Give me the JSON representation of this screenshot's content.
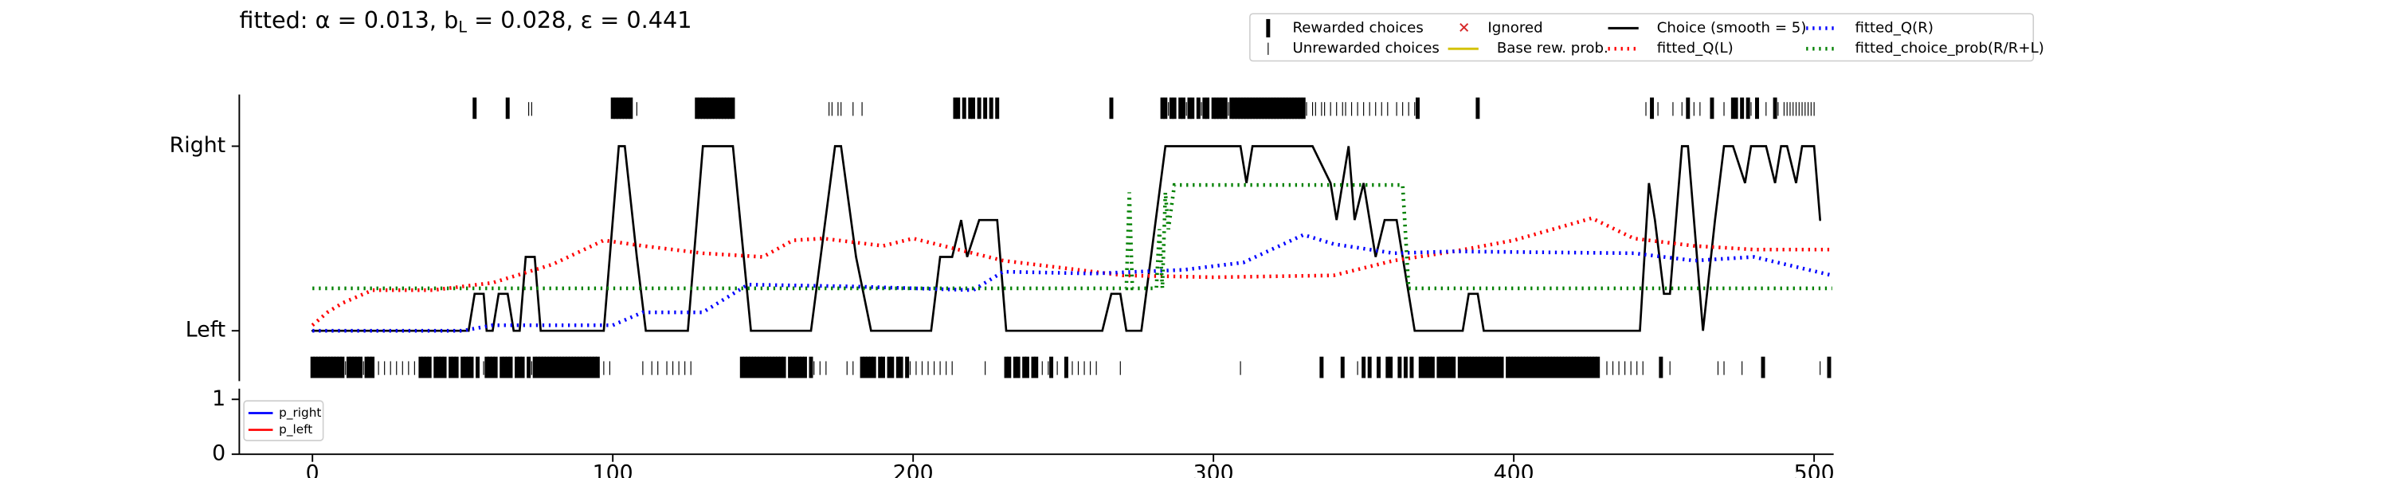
{
  "chart_data": [
    {
      "type": "line",
      "title": [
        "fitted: α = 0.013, b",
        "L",
        " = 0.028, ε = 0.441"
      ],
      "xlim": [
        -24,
        506
      ],
      "ylim": [
        -0.27,
        1.28
      ],
      "yticks": [
        {
          "value": 0,
          "label": "Left"
        },
        {
          "value": 1,
          "label": "Right"
        }
      ],
      "events": [
        {
          "name": "Rewarded choices",
          "color": "#000000",
          "right": [
            54,
            65,
            100,
            101,
            102,
            103,
            104,
            105,
            106,
            128,
            129,
            130,
            131,
            132,
            133,
            134,
            135,
            136,
            137,
            138,
            139,
            140,
            214,
            215,
            217,
            219,
            220,
            222,
            224,
            226,
            228,
            266,
            283,
            284,
            286,
            287,
            289,
            290,
            292,
            293,
            295,
            297,
            298,
            300,
            301,
            302,
            303,
            304,
            306,
            307,
            308,
            309,
            310,
            311,
            312,
            313,
            314,
            315,
            316,
            317,
            318,
            319,
            320,
            321,
            322,
            323,
            324,
            325,
            326,
            327,
            328,
            329,
            330,
            368,
            388,
            446,
            458,
            466,
            473,
            474,
            476,
            478,
            481,
            487
          ],
          "left": [
            0,
            1,
            2,
            3,
            4,
            5,
            6,
            7,
            8,
            9,
            10,
            12,
            13,
            14,
            15,
            16,
            18,
            19,
            20,
            36,
            37,
            38,
            39,
            41,
            42,
            43,
            44,
            46,
            47,
            48,
            50,
            51,
            52,
            53,
            55,
            58,
            59,
            60,
            61,
            63,
            64,
            65,
            66,
            68,
            69,
            70,
            72,
            74,
            75,
            76,
            77,
            78,
            79,
            80,
            81,
            82,
            83,
            84,
            85,
            86,
            87,
            88,
            89,
            90,
            91,
            92,
            93,
            94,
            95,
            143,
            144,
            145,
            146,
            147,
            148,
            149,
            150,
            151,
            152,
            153,
            154,
            155,
            156,
            157,
            159,
            160,
            161,
            162,
            163,
            164,
            166,
            183,
            184,
            185,
            186,
            187,
            189,
            190,
            192,
            193,
            195,
            196,
            198,
            231,
            232,
            234,
            235,
            237,
            238,
            240,
            241,
            246,
            251,
            336,
            343,
            350,
            352,
            355,
            358,
            359,
            362,
            364,
            366,
            369,
            370,
            371,
            372,
            373,
            375,
            376,
            377,
            378,
            379,
            380,
            382,
            383,
            384,
            385,
            386,
            387,
            388,
            389,
            390,
            391,
            392,
            393,
            394,
            395,
            396,
            398,
            399,
            400,
            401,
            402,
            403,
            404,
            405,
            406,
            407,
            408,
            409,
            410,
            411,
            412,
            413,
            414,
            415,
            416,
            417,
            418,
            419,
            420,
            421,
            422,
            423,
            424,
            425,
            426,
            427,
            428,
            449,
            483,
            505
          ]
        },
        {
          "name": "Unrewarded choices",
          "color": "#000000",
          "right": [
            72,
            73,
            108,
            172,
            173,
            175,
            176,
            180,
            183,
            285,
            291,
            296,
            305,
            331,
            333,
            334,
            336,
            337,
            339,
            341,
            343,
            344,
            346,
            348,
            350,
            352,
            354,
            356,
            358,
            361,
            363,
            365,
            367,
            444,
            448,
            453,
            456,
            460,
            462,
            470,
            479,
            484,
            488,
            490,
            491,
            492,
            493,
            494,
            495,
            496,
            497,
            498,
            499,
            500
          ],
          "left": [
            11,
            17,
            22,
            24,
            26,
            28,
            30,
            32,
            34,
            57,
            73,
            97,
            99,
            110,
            113,
            115,
            118,
            120,
            122,
            124,
            126,
            167,
            169,
            171,
            178,
            180,
            199,
            201,
            203,
            205,
            207,
            209,
            211,
            213,
            224,
            243,
            245,
            248,
            253,
            255,
            257,
            259,
            261,
            269,
            309,
            348,
            431,
            433,
            435,
            437,
            439,
            441,
            443,
            452,
            468,
            470,
            476,
            502
          ]
        }
      ],
      "other_legend": [
        {
          "name": "Ignored",
          "color": "#d62728",
          "marker": "x"
        },
        {
          "name": "Base rew. prob.",
          "color": "#d4c20a",
          "marker": "line"
        }
      ],
      "series": [
        {
          "name": "Choice (smooth = 5)",
          "color": "#000000",
          "style": "solid",
          "x": [
            0,
            52,
            54,
            57,
            58,
            60,
            62,
            65,
            67,
            69,
            71,
            74,
            76,
            97,
            102,
            104,
            108,
            111,
            125,
            130,
            140,
            146,
            166,
            174,
            176,
            181,
            186,
            206,
            209,
            213,
            216,
            218,
            222,
            228,
            231,
            263,
            266,
            269,
            271,
            276,
            284,
            309,
            311,
            313,
            333,
            339,
            341,
            343,
            345,
            347,
            350,
            354,
            357,
            361,
            363,
            367,
            383,
            385,
            388,
            390,
            442,
            445,
            447,
            450,
            452,
            456,
            458,
            461,
            463,
            467,
            470,
            473,
            477,
            479,
            484,
            487,
            489,
            491,
            494,
            496,
            500,
            502
          ],
          "values": [
            0,
            0,
            0.2,
            0.2,
            0,
            0,
            0.2,
            0.2,
            0,
            0,
            0.4,
            0.4,
            0,
            0,
            1,
            1,
            0.4,
            0,
            0,
            1,
            1,
            0,
            0,
            1,
            1,
            0.4,
            0,
            0,
            0.4,
            0.4,
            0.6,
            0.4,
            0.6,
            0.6,
            0,
            0,
            0.2,
            0.2,
            0,
            0,
            1,
            1,
            0.8,
            1,
            1,
            0.8,
            0.6,
            0.8,
            1,
            0.6,
            0.8,
            0.4,
            0.6,
            0.6,
            0.4,
            0,
            0,
            0.2,
            0.2,
            0,
            0,
            0.8,
            0.6,
            0.2,
            0.2,
            1,
            1,
            0.4,
            0,
            0.6,
            1,
            1,
            0.8,
            1,
            1,
            0.8,
            1,
            1,
            0.8,
            1,
            1,
            0.6
          ]
        },
        {
          "name": "fitted_Q(L)",
          "color": "#ff0000",
          "style": "dotted",
          "x": [
            0,
            5,
            10,
            20,
            40,
            60,
            80,
            97,
            110,
            130,
            150,
            160,
            170,
            190,
            200,
            230,
            270,
            300,
            340,
            360,
            380,
            400,
            426,
            440,
            460,
            480,
            506
          ],
          "values": [
            0.03,
            0.1,
            0.15,
            0.22,
            0.22,
            0.26,
            0.36,
            0.49,
            0.46,
            0.42,
            0.4,
            0.49,
            0.5,
            0.46,
            0.5,
            0.38,
            0.3,
            0.29,
            0.3,
            0.38,
            0.43,
            0.49,
            0.61,
            0.5,
            0.46,
            0.44,
            0.44
          ]
        },
        {
          "name": "fitted_Q(R)",
          "color": "#0000ff",
          "style": "dotted",
          "x": [
            0,
            50,
            60,
            100,
            110,
            130,
            140,
            145,
            180,
            220,
            230,
            260,
            290,
            310,
            330,
            340,
            360,
            380,
            440,
            460,
            480,
            506
          ],
          "values": [
            0,
            0,
            0.03,
            0.03,
            0.1,
            0.1,
            0.2,
            0.25,
            0.24,
            0.22,
            0.32,
            0.31,
            0.33,
            0.37,
            0.52,
            0.47,
            0.42,
            0.43,
            0.42,
            0.38,
            0.4,
            0.3
          ]
        },
        {
          "name": "fitted_choice_prob(R/R+L)",
          "color": "#008000",
          "style": "dotted",
          "x": [
            0,
            271,
            272,
            273,
            281,
            282,
            283,
            284,
            285,
            287,
            363,
            365,
            506
          ],
          "values": [
            0.23,
            0.23,
            0.75,
            0.23,
            0.23,
            0.55,
            0.23,
            0.75,
            0.55,
            0.79,
            0.79,
            0.23,
            0.23
          ]
        }
      ]
    },
    {
      "type": "line",
      "xlim": [
        -24,
        506
      ],
      "xticks": [
        0,
        100,
        200,
        300,
        400,
        500
      ],
      "ylim": [
        0,
        1.2
      ],
      "yticks": [
        0,
        1
      ],
      "series": [
        {
          "name": "p_right",
          "color": "#0000ff"
        },
        {
          "name": "p_left",
          "color": "#ff0000"
        }
      ]
    }
  ]
}
